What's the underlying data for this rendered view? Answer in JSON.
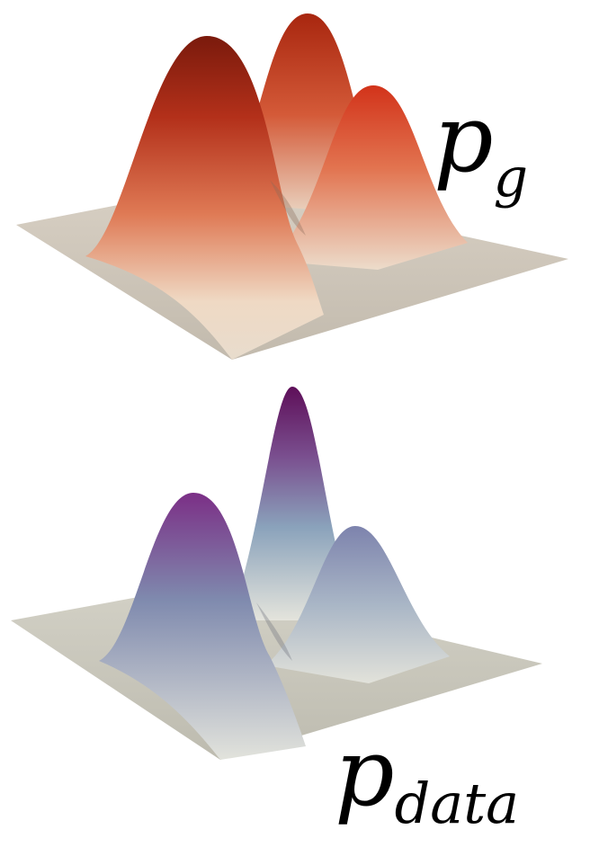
{
  "labels": {
    "generated": {
      "base": "p",
      "subscript": "g"
    },
    "data": {
      "base": "p",
      "subscript": "data"
    }
  },
  "surfaces": {
    "generated": {
      "peak_color": "#a6230f",
      "mid_color": "#d75a3a",
      "base_color": "#ede0d2",
      "plane_color": "#cbc4b7"
    },
    "data": {
      "peak_color": "#6e1463",
      "mid_color": "#7f97b4",
      "base_color": "#e4e4dc",
      "plane_color": "#c6c4b8"
    }
  }
}
